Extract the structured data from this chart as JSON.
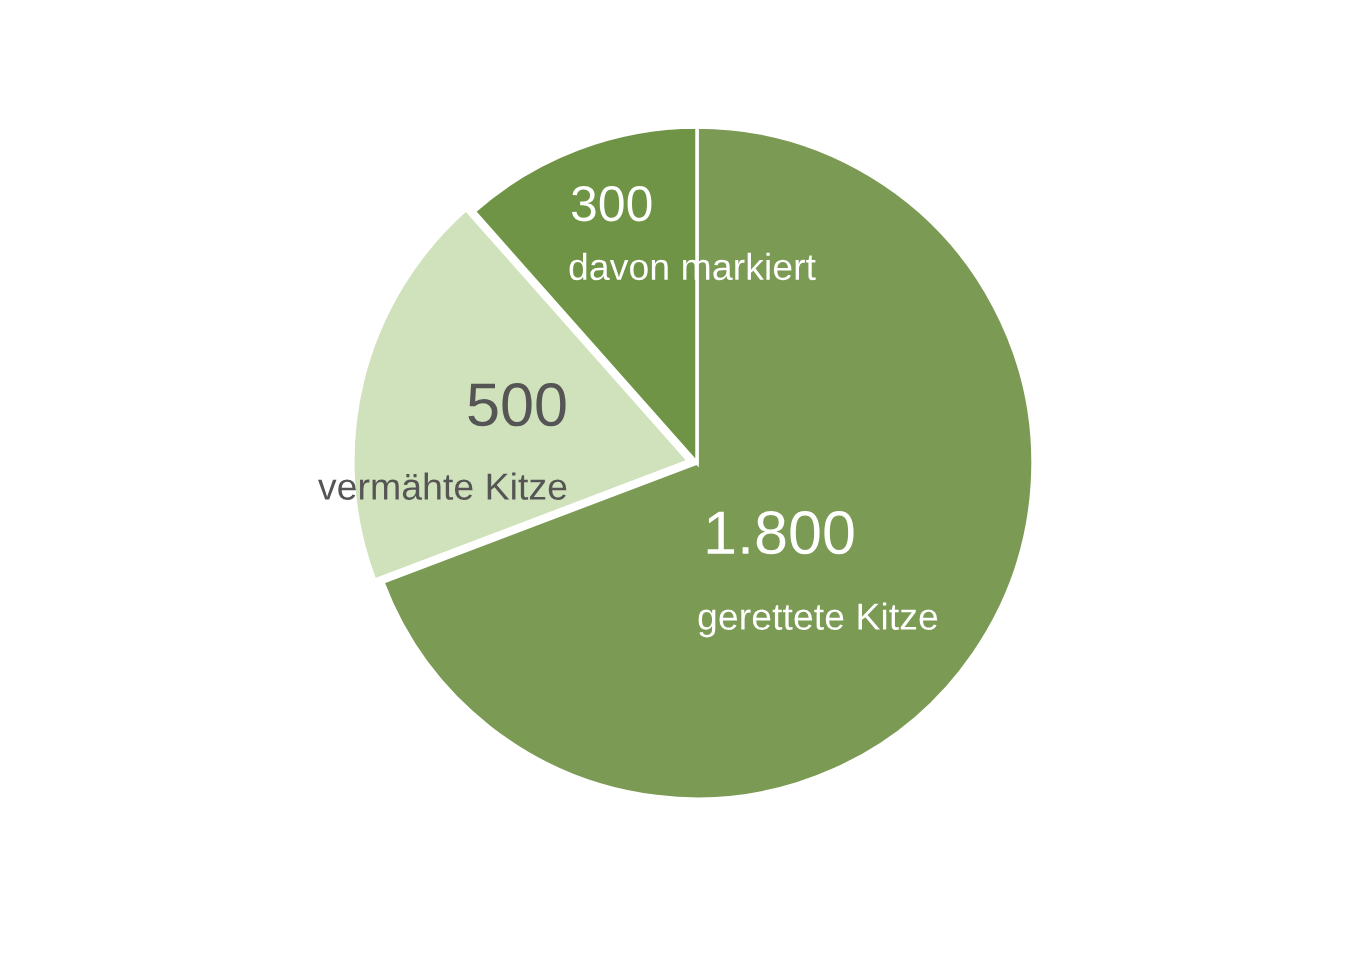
{
  "chart_data": {
    "type": "pie",
    "categories": [
      "gerettete Kitze",
      "vermähte Kitze",
      "davon markiert"
    ],
    "values": [
      1800,
      500,
      300
    ],
    "colors": [
      "#7b9a54",
      "#d0e2bb",
      "#6f9445"
    ],
    "value_labels": [
      "1.800",
      "500",
      "300"
    ]
  }
}
